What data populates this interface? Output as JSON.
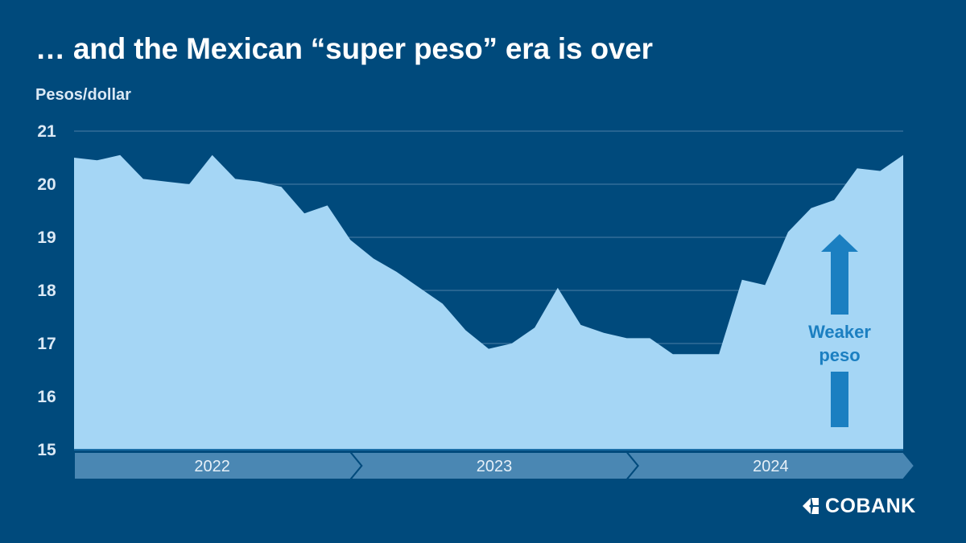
{
  "chart_data": {
    "type": "area",
    "title": "… and the Mexican “super peso” era is over",
    "ylabel": "Pesos/dollar",
    "xlabel": "",
    "ylim": [
      15,
      21
    ],
    "yticks": [
      "15",
      "16",
      "17",
      "18",
      "19",
      "20",
      "21"
    ],
    "grid": true,
    "x_ranges": [
      {
        "label": "2022",
        "start": 0,
        "end": 12
      },
      {
        "label": "2023",
        "start": 12,
        "end": 24
      },
      {
        "label": "2024",
        "start": 24,
        "end": 36
      }
    ],
    "x_domain": [
      0,
      36
    ],
    "series": [
      {
        "x": [
          0,
          1,
          2,
          3,
          4,
          5,
          6,
          7,
          8,
          9,
          10,
          11,
          12,
          13,
          14,
          15,
          16,
          17,
          18,
          19,
          20,
          21,
          22,
          23,
          24,
          25,
          26,
          27,
          28,
          29,
          30,
          31,
          32,
          33,
          34,
          35,
          36
        ],
        "values": [
          20.5,
          20.45,
          20.55,
          20.1,
          20.05,
          20.0,
          20.55,
          20.1,
          20.05,
          19.95,
          19.45,
          19.6,
          18.95,
          18.6,
          18.35,
          18.05,
          17.75,
          17.25,
          16.9,
          17.0,
          17.3,
          18.05,
          17.35,
          17.2,
          17.1,
          17.1,
          16.8,
          16.8,
          16.8,
          18.2,
          18.1,
          19.1,
          19.55,
          19.7,
          20.3,
          20.25,
          20.55
        ]
      }
    ],
    "annotation": {
      "line1": "Weaker",
      "line2": "peso",
      "direction": "up"
    },
    "colors": {
      "background": "#004a7c",
      "area": "#a5d6f5",
      "gridline": "#4d7ea6",
      "ticklabel": "#dbe9f5",
      "band": "#4a87b3",
      "arrow": "#1b7fc1"
    }
  },
  "logo": {
    "text": "COBANK"
  }
}
